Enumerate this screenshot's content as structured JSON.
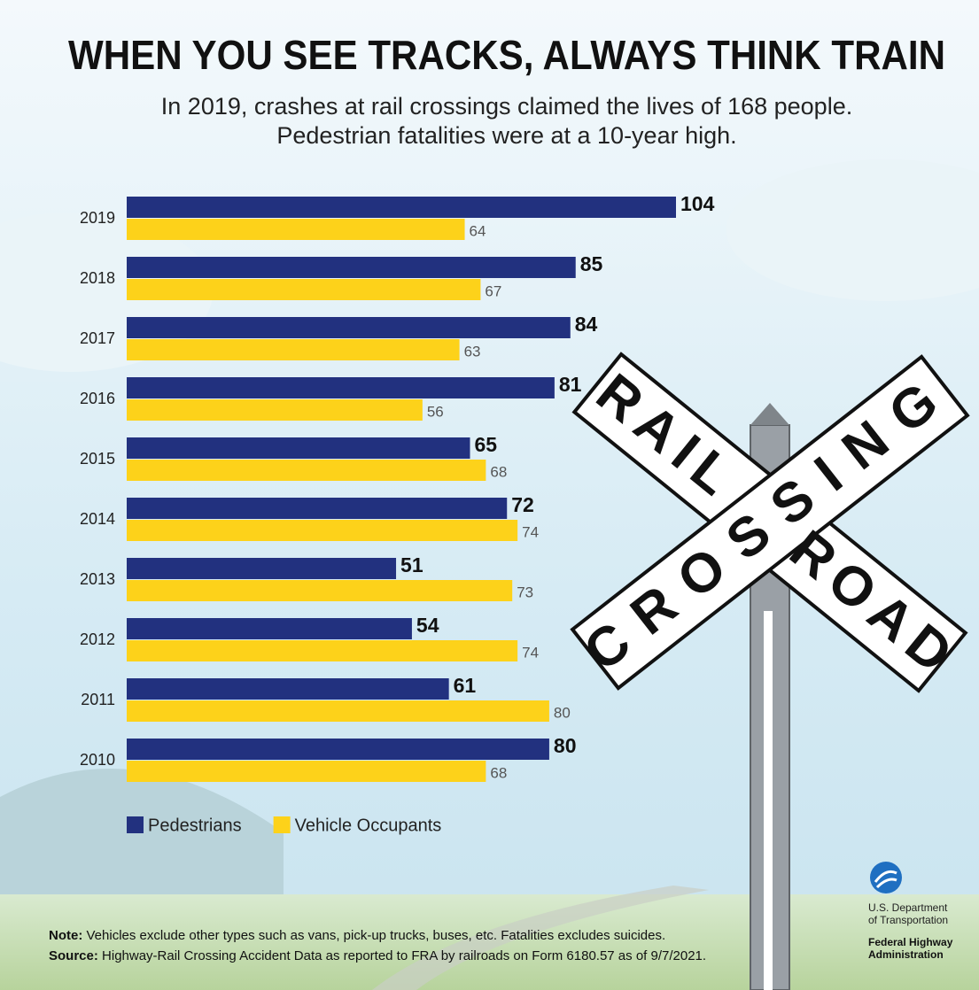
{
  "chart_data": {
    "type": "bar",
    "orientation": "horizontal",
    "title": "WHEN YOU SEE TRACKS, ALWAYS THINK TRAIN",
    "subtitle": [
      "In 2019, crashes at rail crossings claimed the lives of 168 people.",
      "Pedestrian fatalities were at a 10-year high."
    ],
    "categories": [
      "2019",
      "2018",
      "2017",
      "2016",
      "2015",
      "2014",
      "2013",
      "2012",
      "2011",
      "2010"
    ],
    "series": [
      {
        "name": "Pedestrians",
        "color": "#22317f",
        "values": [
          104,
          85,
          84,
          81,
          65,
          72,
          51,
          54,
          61,
          80
        ]
      },
      {
        "name": "Vehicle Occupants",
        "color": "#fdd21a",
        "values": [
          64,
          67,
          63,
          56,
          68,
          74,
          73,
          74,
          80,
          68
        ]
      }
    ],
    "legend": "bottom-left",
    "note": {
      "label": "Note:",
      "text": "Vehicles exclude other types such as vans, pick-up trucks, buses, etc.  Fatalities excludes suicides."
    },
    "source": {
      "label": "Source:",
      "text": "Highway-Rail Crossing Accident Data as reported to FRA by railroads on Form 6180.57 as of 9/7/2021."
    },
    "sign": {
      "arm1": [
        "RAIL",
        "ROAD"
      ],
      "arm2": "CROSSING"
    },
    "logo": {
      "agency": [
        "U.S. Department",
        "of Transportation"
      ],
      "division": [
        "Federal Highway",
        "Administration"
      ]
    }
  }
}
